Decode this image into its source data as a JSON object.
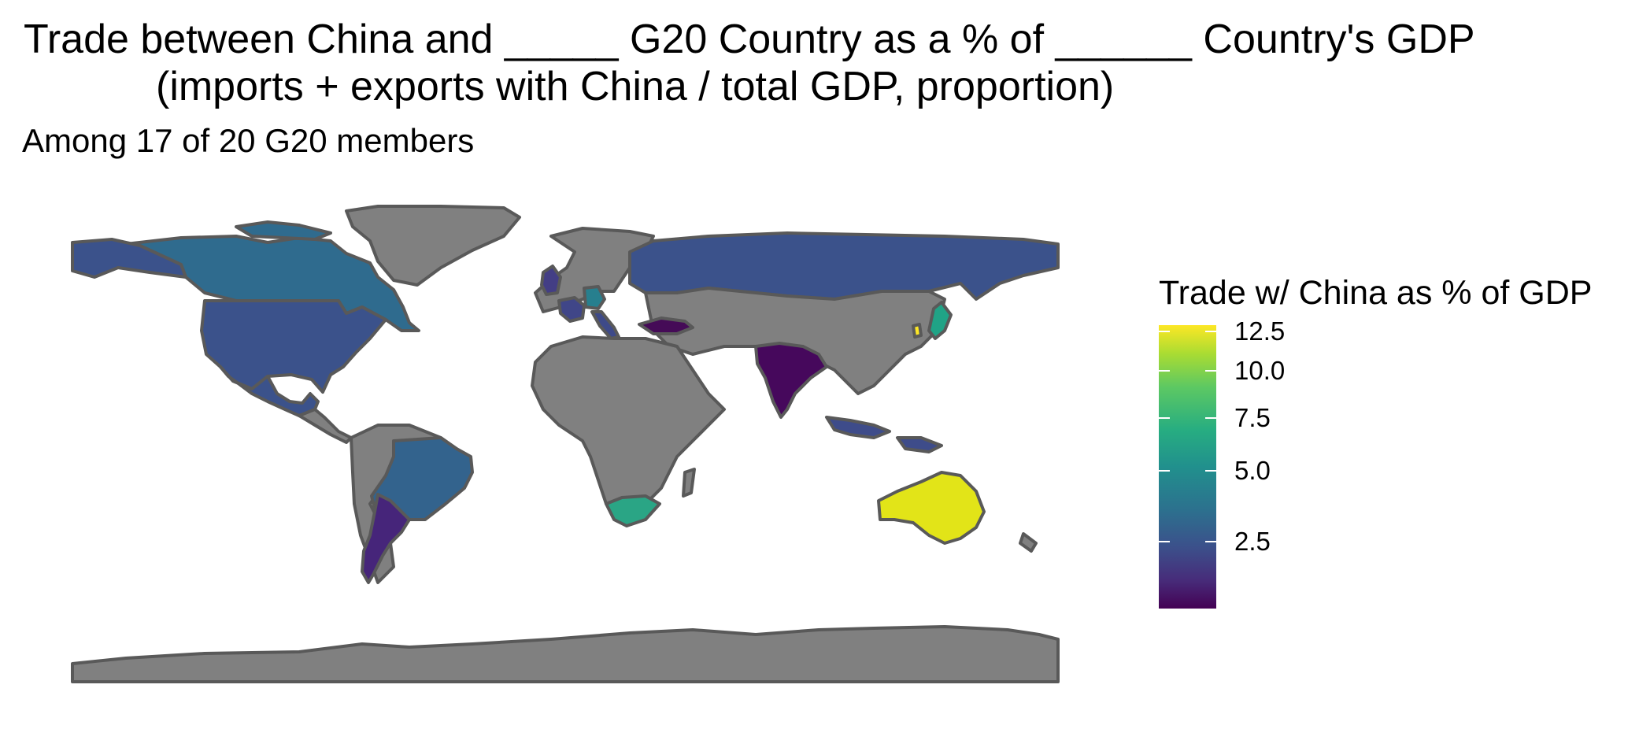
{
  "title": {
    "line1": "Trade between China and _____ G20 Country as a % of ______ Country's GDP",
    "line2": "(imports + exports with China / total GDP, proportion)"
  },
  "subtitle": "Among 17 of 20 G20 members",
  "legend": {
    "title": "Trade w/ China as % of GDP",
    "ticks": [
      "12.5",
      "10.0",
      "7.5",
      "5.0",
      "2.5"
    ],
    "range": [
      1.5,
      13.0
    ],
    "colors": [
      "#440154",
      "#3b528b",
      "#21918c",
      "#5ec962",
      "#fde725"
    ]
  },
  "map": {
    "no_data_color": "#808080",
    "border_color": "#595959",
    "countries": [
      {
        "name": "Canada",
        "color": "#2f6b8e"
      },
      {
        "name": "United States",
        "color": "#3b528b"
      },
      {
        "name": "Mexico",
        "color": "#3b528b"
      },
      {
        "name": "Brazil",
        "color": "#33638d"
      },
      {
        "name": "Argentina",
        "color": "#46257a"
      },
      {
        "name": "United Kingdom",
        "color": "#433e85"
      },
      {
        "name": "France",
        "color": "#404688"
      },
      {
        "name": "Germany",
        "color": "#277f8e"
      },
      {
        "name": "Italy",
        "color": "#3e4a89"
      },
      {
        "name": "Russia",
        "color": "#3b528b"
      },
      {
        "name": "Turkey",
        "color": "#450b57"
      },
      {
        "name": "India",
        "color": "#46085c"
      },
      {
        "name": "Japan",
        "color": "#20a386"
      },
      {
        "name": "South Korea",
        "color": "#fde725"
      },
      {
        "name": "Indonesia",
        "color": "#3e4c8a"
      },
      {
        "name": "Australia",
        "color": "#e2e418"
      },
      {
        "name": "South Africa",
        "color": "#2aa585"
      }
    ]
  }
}
